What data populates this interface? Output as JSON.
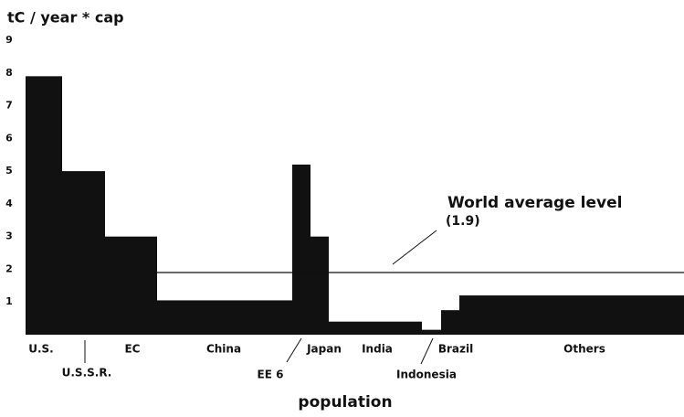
{
  "chart_data": {
    "type": "variable-width-bar",
    "y_label": "tC / year * cap",
    "x_label": "population",
    "categories": [
      "U.S.",
      "U.S.S.R.",
      "EC",
      "China",
      "EE 6",
      "Japan",
      "India",
      "Indonesia",
      "Brazil",
      "Others"
    ],
    "values": [
      7.9,
      5.0,
      3.0,
      1.05,
      5.2,
      3.0,
      0.4,
      0.15,
      0.75,
      1.2
    ],
    "widths": [
      40,
      47,
      57,
      148,
      20,
      20,
      102,
      21,
      20,
      246
    ],
    "color": "#111111",
    "xlim": [
      0,
      721
    ],
    "ylim": [
      0,
      9
    ],
    "yticks": [
      1,
      2,
      3,
      4,
      5,
      6,
      7,
      8,
      9
    ],
    "grid": false,
    "reference": {
      "value": 1.9,
      "label": "World average level",
      "value_label": "(1.9)"
    }
  }
}
